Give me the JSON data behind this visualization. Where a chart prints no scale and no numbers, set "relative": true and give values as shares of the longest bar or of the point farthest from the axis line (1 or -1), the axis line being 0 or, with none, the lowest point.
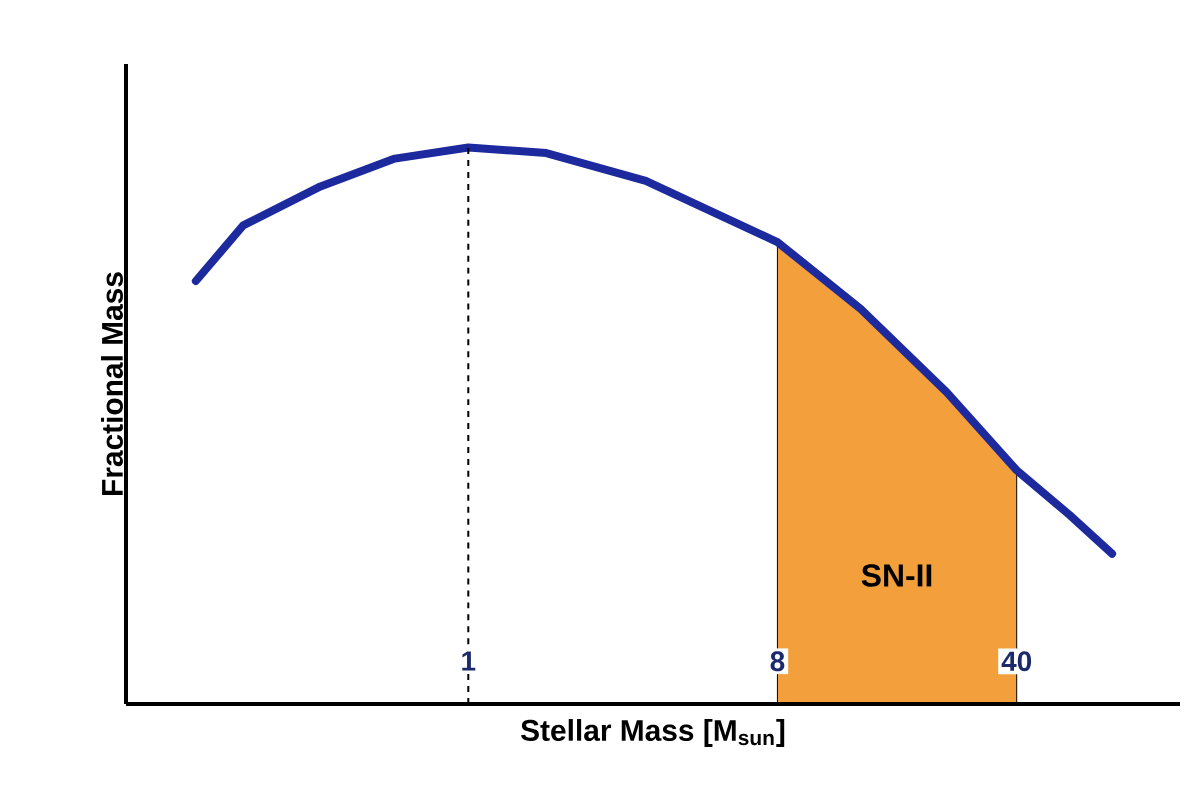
{
  "chart_data": {
    "type": "line",
    "relative": true,
    "log": "x",
    "xlabel": "Stellar Mass [M$_{sun}$]",
    "ylabel": "Fractional Mass",
    "xlim": [
      0.1,
      120
    ],
    "xticks": [
      1,
      8,
      40
    ],
    "tick_labels": "x",
    "marker": "none",
    "line_style": "solid",
    "series": [
      {
        "color": "#1c2a9e",
        "x": [
          0.16,
          0.22,
          0.37,
          0.61,
          1,
          1.69,
          3.3,
          8,
          14,
          25,
          40,
          57,
          76
        ],
        "values": [
          0.76,
          0.86,
          0.93,
          0.98,
          1,
          0.99,
          0.94,
          0.83,
          0.71,
          0.56,
          0.42,
          0.34,
          0.27
        ]
      },
      {
        "type": "area",
        "color": "#f3a03c",
        "x": [
          8,
          14,
          25,
          40
        ],
        "values": [
          0.83,
          0.71,
          0.56,
          0.42
        ]
      }
    ],
    "ref_lines": [
      {
        "axis": "x",
        "value": 1,
        "line_style": "dashed",
        "color": "#000000"
      }
    ],
    "annotations": [
      "SN-II"
    ]
  }
}
